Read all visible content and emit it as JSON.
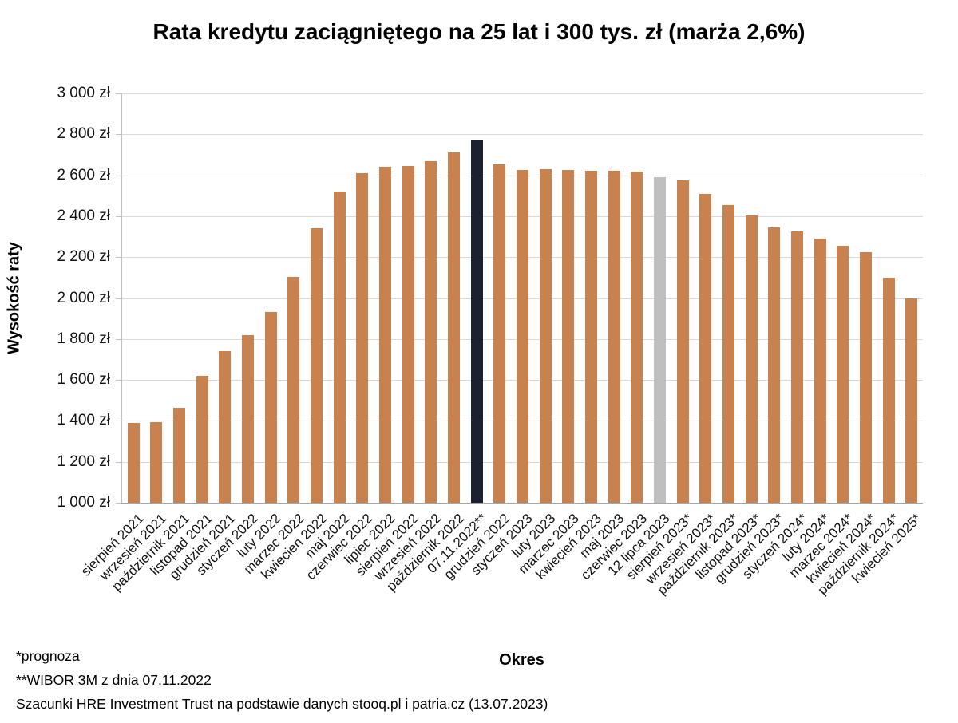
{
  "chart_data": {
    "type": "bar",
    "title": "Rata kredytu zaciągniętego na 25 lat i 300 tys. zł (marża 2,6%)",
    "xlabel": "Okres",
    "ylabel": "Wysokość raty",
    "ylim": [
      1000,
      3000
    ],
    "grid": true,
    "legend_position": "none",
    "ytick_values": [
      3000,
      2800,
      2600,
      2400,
      2200,
      2000,
      1800,
      1600,
      1400,
      1200,
      1000
    ],
    "ytick_labels": [
      "3 000 zł",
      "2 800 zł",
      "2 600 zł",
      "2 400 zł",
      "2 200 zł",
      "2 000 zł",
      "1 800 zł",
      "1 600 zł",
      "1 400 zł",
      "1 200 zł",
      "1 000 zł"
    ],
    "categories": [
      "sierpień 2021",
      "wrzesień 2021",
      "październik 2021",
      "listopad 2021",
      "grudzień 2021",
      "styczeń 2022",
      "luty 2022",
      "marzec 2022",
      "kwiecień 2022",
      "maj 2022",
      "czerwiec 2022",
      "lipiec 2022",
      "sierpień 2022",
      "wrzesień 2022",
      "październik 2022",
      "07.11.2022**",
      "grudzień 2022",
      "styczeń 2023",
      "luty 2023",
      "marzec 2023",
      "kwiecień 2023",
      "maj 2023",
      "czerwiec 2023",
      "12 lipca 2023",
      "sierpień 2023*",
      "wrzesień 2023*",
      "październik 2023*",
      "listopad 2023*",
      "grudzień 2023*",
      "styczeń 2024*",
      "luty 2024*",
      "marzec 2024*",
      "kwiecień 2024*",
      "październik 2024*",
      "kwiecień 2025*"
    ],
    "values": [
      1390,
      1395,
      1465,
      1620,
      1740,
      1820,
      1930,
      2105,
      2340,
      2520,
      2610,
      2640,
      2645,
      2670,
      2710,
      2770,
      2655,
      2625,
      2630,
      2625,
      2620,
      2620,
      2618,
      2590,
      2575,
      2510,
      2455,
      2405,
      2345,
      2325,
      2290,
      2255,
      2225,
      2100,
      2000
    ],
    "bar_color_default": "#C8824F",
    "bar_color_overrides": {
      "15": "#1B2130",
      "23": "#BFBFBF"
    }
  },
  "footnotes": [
    "*prognoza",
    "**WIBOR 3M z dnia 07.11.2022",
    "Szacunki HRE Investment Trust na podstawie danych stooq.pl i patria.cz (13.07.2023)"
  ]
}
